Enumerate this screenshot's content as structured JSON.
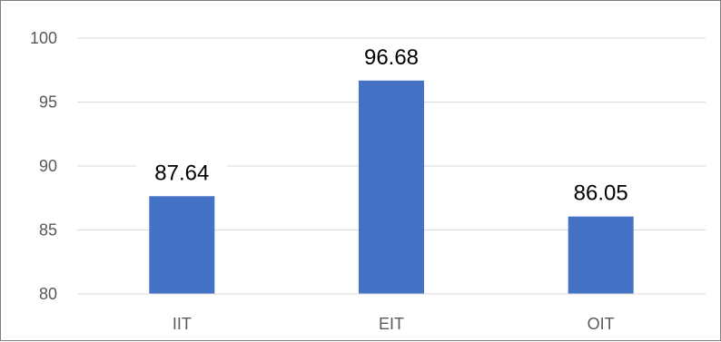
{
  "chart_data": {
    "type": "bar",
    "title": "",
    "xlabel": "",
    "ylabel": "",
    "categories": [
      "IIT",
      "EIT",
      "OIT"
    ],
    "values": [
      87.64,
      96.68,
      86.05
    ],
    "data_labels": [
      "87.64",
      "96.68",
      "86.05"
    ],
    "y_ticks": [
      80,
      85,
      90,
      95,
      100
    ],
    "ylim": [
      80,
      100
    ],
    "grid": true,
    "legend": "none",
    "bar_color": "#4472c4",
    "grid_color": "#d9d9d9"
  }
}
